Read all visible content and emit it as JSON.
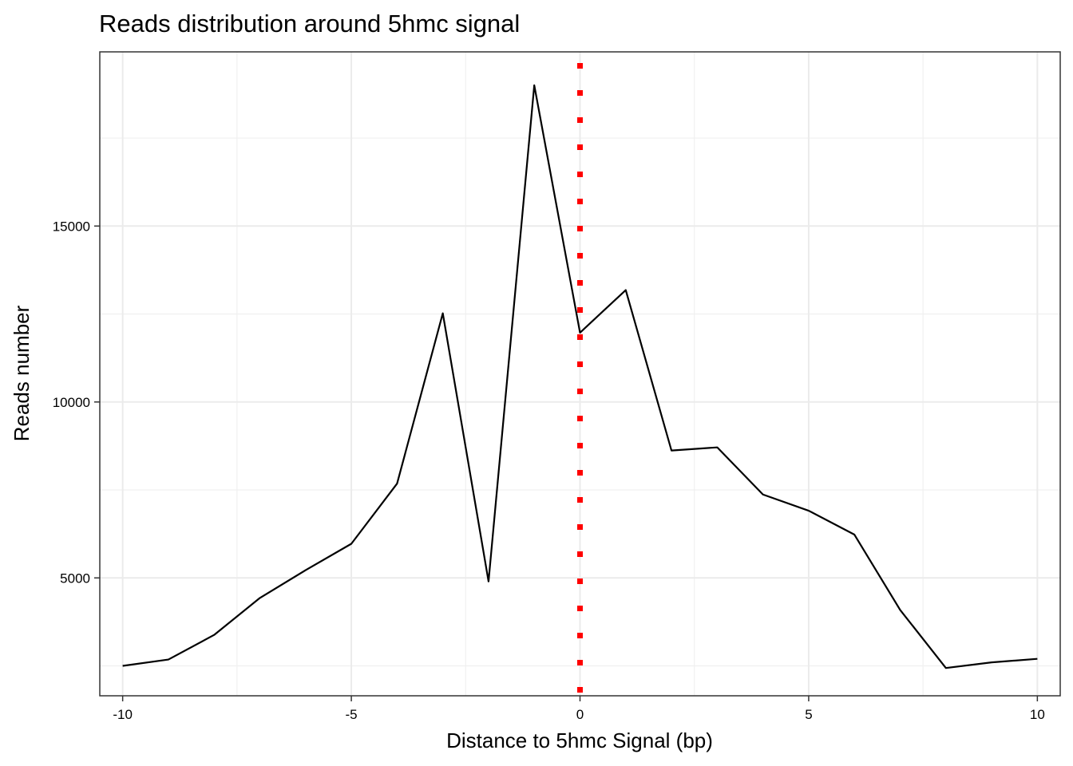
{
  "chart_data": {
    "type": "line",
    "title": "Reads distribution around 5hmc signal",
    "xlabel": "Distance to 5hmc Signal (bp)",
    "ylabel": "Reads number",
    "xlim": [
      -10.5,
      10.5
    ],
    "ylim": [
      1650,
      19950
    ],
    "x_ticks": [
      -10,
      -5,
      0,
      5,
      10
    ],
    "x_tick_labels": [
      "-10",
      "-5",
      "0",
      "5",
      "10"
    ],
    "x_minor_ticks": [
      -7.5,
      -2.5,
      2.5,
      7.5
    ],
    "y_ticks": [
      5000,
      10000,
      15000
    ],
    "y_tick_labels": [
      "5000",
      "10000",
      "15000"
    ],
    "y_minor_ticks": [
      2500,
      7500,
      12500,
      17500
    ],
    "grid": true,
    "series": [
      {
        "x": [
          -10,
          -9,
          -8,
          -7,
          -6,
          -5,
          -4,
          -3,
          -2,
          -1,
          0,
          1,
          2,
          3,
          4,
          5,
          6,
          7,
          8,
          9,
          10
        ],
        "values": [
          2500,
          2680,
          3380,
          4430,
          5220,
          5970,
          7680,
          12520,
          4900,
          19000,
          11970,
          13180,
          8620,
          8710,
          7370,
          6910,
          6230,
          4090,
          2440,
          2600,
          2700
        ],
        "color": "#000000"
      }
    ],
    "reference_line": {
      "x": 0,
      "color": "#ff0000",
      "style": "dotted"
    }
  }
}
